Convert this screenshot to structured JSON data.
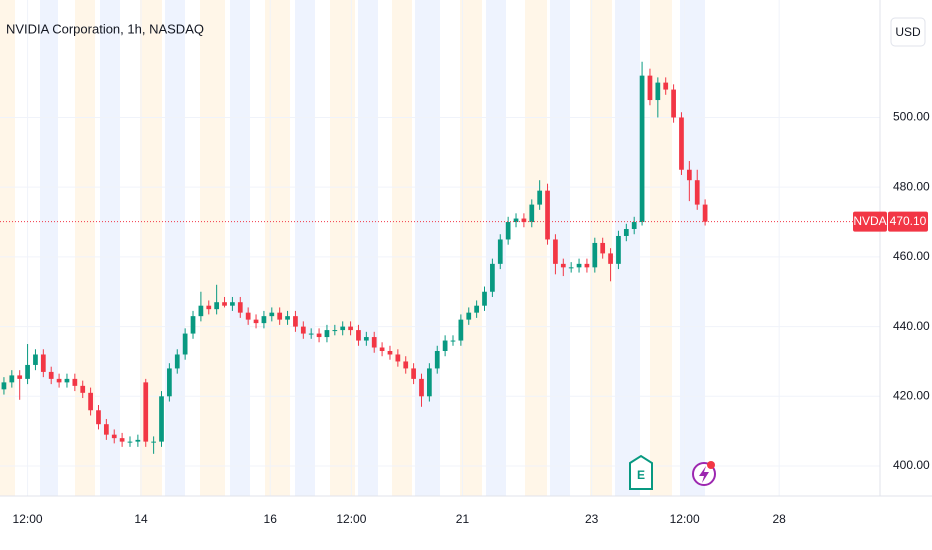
{
  "chart_data": {
    "type": "candlestick",
    "title": "NVIDIA Corporation, 1h, NASDAQ",
    "currency": "USD",
    "symbol": "NVDA",
    "last_price": 470.1,
    "last_price_label": "470.10",
    "earnings_marker": "E",
    "up_color": "#089981",
    "down_color": "#f23645",
    "grid": true,
    "xlim": [
      -0.5,
      111.2
    ],
    "xticks": [
      {
        "value": 3,
        "label": "12:00"
      },
      {
        "value": 17.4,
        "label": "14"
      },
      {
        "value": 33.8,
        "label": "16"
      },
      {
        "value": 44.1,
        "label": "12:00"
      },
      {
        "value": 58.2,
        "label": "21"
      },
      {
        "value": 74.6,
        "label": "23"
      },
      {
        "value": 86.4,
        "label": "12:00"
      },
      {
        "value": 98.4,
        "label": "28"
      }
    ],
    "ylim": [
      391.4,
      533.7
    ],
    "yticks": [
      {
        "value": 400,
        "label": "400.00"
      },
      {
        "value": 420,
        "label": "420.00"
      },
      {
        "value": 440,
        "label": "440.00"
      },
      {
        "value": 460,
        "label": "460.00"
      },
      {
        "value": 480,
        "label": "480.00"
      },
      {
        "value": 500,
        "label": "500.00"
      }
    ],
    "open": [
      422,
      424,
      426,
      425,
      429,
      432,
      427,
      425,
      424,
      425,
      423,
      421,
      416,
      412,
      409,
      408,
      407,
      407,
      424,
      407,
      407,
      420,
      428,
      432,
      438,
      443,
      446,
      445,
      447,
      446,
      447,
      444,
      442,
      441,
      443,
      444,
      442,
      443,
      440,
      438,
      438,
      437,
      439,
      439,
      440,
      439,
      436,
      437,
      434,
      433,
      432,
      430,
      428,
      425,
      420,
      428,
      433,
      436,
      436,
      442,
      444,
      446,
      450,
      458,
      465,
      470,
      471,
      470,
      475,
      479,
      465,
      458,
      457,
      457,
      458,
      457,
      464,
      461,
      458,
      466,
      468,
      470,
      512,
      505,
      510,
      508,
      500,
      485,
      482,
      475
    ],
    "high": [
      425.5,
      427.5,
      427.5,
      435,
      433.5,
      433.5,
      428.5,
      426.5,
      426.5,
      426.5,
      424.5,
      422.5,
      417.5,
      413.5,
      410.5,
      409.5,
      408.5,
      409,
      425,
      408.5,
      421.5,
      429.5,
      433.5,
      439.5,
      444.5,
      450,
      447.5,
      452,
      448.5,
      448.5,
      448.5,
      445.5,
      443.5,
      444.5,
      445.5,
      445.5,
      444.5,
      444.5,
      441.5,
      439.5,
      439.5,
      440.5,
      440.5,
      441.5,
      441.5,
      440.5,
      438.5,
      438.5,
      435.5,
      434.5,
      433.5,
      431.5,
      429.5,
      426.5,
      429.5,
      434.5,
      437.5,
      437.5,
      443.5,
      445.5,
      447.5,
      451.5,
      459.5,
      466.5,
      471.5,
      472.5,
      472.5,
      476.5,
      482,
      481,
      466.5,
      459.5,
      458.5,
      459.5,
      459.5,
      465.5,
      465.5,
      462.5,
      467.5,
      469.5,
      471.5,
      516,
      514,
      511.5,
      511.5,
      509.5,
      501.5,
      487.5,
      485,
      476.5
    ],
    "low": [
      420.5,
      422.5,
      419,
      423.5,
      427.5,
      425.5,
      423.5,
      422.5,
      422.5,
      421.5,
      419.5,
      414.5,
      410.5,
      407.5,
      406.5,
      405.5,
      405.5,
      405.5,
      405.5,
      403.5,
      405.5,
      418.5,
      426.5,
      430.5,
      436.5,
      441.5,
      443.5,
      443.5,
      445.5,
      444.5,
      442.5,
      440.5,
      439.5,
      439.5,
      441.5,
      440.5,
      440.5,
      438.5,
      436.5,
      436.5,
      435.5,
      435.5,
      437.5,
      437.5,
      437.5,
      434.5,
      434.5,
      432.5,
      431.5,
      430.5,
      428.5,
      426.5,
      423.5,
      417,
      418.5,
      426.5,
      431.5,
      434.5,
      434.5,
      440.5,
      442.5,
      444.5,
      448.5,
      456.5,
      463.5,
      468.5,
      468.5,
      468.5,
      473.5,
      463.5,
      455,
      454.5,
      455.5,
      455.5,
      455.5,
      455.5,
      459.5,
      453,
      456.5,
      464.5,
      466.5,
      469,
      503.5,
      500,
      506.5,
      498.5,
      483.5,
      476,
      473.5,
      469
    ],
    "close": [
      424,
      426,
      425,
      429,
      432,
      427,
      425,
      424,
      425,
      423,
      421,
      416,
      412,
      409,
      408,
      407,
      407,
      407.5,
      407,
      407,
      420,
      428,
      432,
      438,
      443,
      446,
      445,
      447,
      446,
      447,
      444,
      442,
      441,
      443,
      444,
      442,
      443,
      440,
      438,
      438,
      437,
      439,
      439,
      440,
      439,
      436,
      437,
      434,
      433,
      432,
      430,
      428,
      425,
      420,
      428,
      433,
      436,
      436,
      442,
      444,
      446,
      450,
      458,
      465,
      470,
      471,
      470,
      475,
      479,
      465,
      458,
      457,
      457,
      458,
      457,
      464,
      461,
      458,
      466,
      468,
      470,
      512,
      505,
      510,
      508,
      500,
      485,
      482,
      475,
      470.1
    ]
  }
}
